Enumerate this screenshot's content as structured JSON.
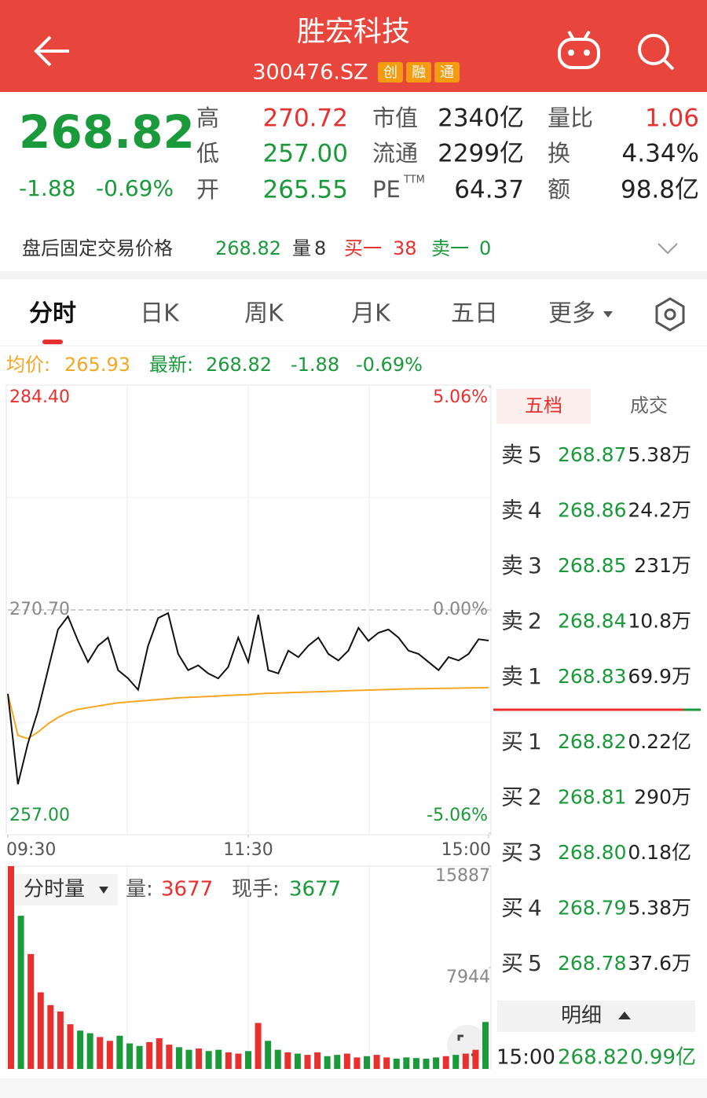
{
  "header": {
    "title": "胜宏科技",
    "code": "300476.SZ",
    "badges": [
      "创",
      "融",
      "通"
    ]
  },
  "quote": {
    "price": "268.82",
    "change": "-1.88",
    "change_pct": "-0.69%",
    "stats": [
      {
        "label": "高",
        "value": "270.72",
        "color": "#e8312f"
      },
      {
        "label": "低",
        "value": "257.00",
        "color": "#1a9a3a"
      },
      {
        "label": "开",
        "value": "265.55",
        "color": "#1a9a3a"
      },
      {
        "label": "市值",
        "value": "2340亿",
        "color": "#222222"
      },
      {
        "label": "流通",
        "value": "2299亿",
        "color": "#222222"
      },
      {
        "label": "PE",
        "label_sup": "TTM",
        "value": "64.37",
        "color": "#222222"
      },
      {
        "label": "量比",
        "value": "1.06",
        "color": "#e8312f"
      },
      {
        "label": "换",
        "value": "4.34%",
        "color": "#222222"
      },
      {
        "label": "额",
        "value": "98.8亿",
        "color": "#222222"
      }
    ]
  },
  "after_hours": {
    "label": "盘后固定交易价格",
    "price": "268.82",
    "volume_label": "量",
    "volume": "8",
    "buy1_label": "买一",
    "buy1": "38",
    "sell1_label": "卖一",
    "sell1": "0"
  },
  "tabs": [
    "分时",
    "日K",
    "周K",
    "月K",
    "五日",
    "更多"
  ],
  "summary": {
    "avg_label": "均价:",
    "avg": "265.93",
    "latest_label": "最新:",
    "latest": "268.82",
    "change": "-1.88",
    "change_pct": "-0.69%"
  },
  "chart_data": [
    {
      "type": "line",
      "x": [
        0,
        5,
        10,
        15,
        20,
        25,
        30,
        35,
        40,
        45,
        50,
        55,
        60,
        65,
        70,
        75,
        80,
        85,
        90,
        95,
        100,
        105,
        110,
        115,
        120,
        125,
        130,
        135,
        140,
        145,
        150,
        155,
        160,
        165,
        170,
        175,
        180,
        185,
        190,
        195,
        200,
        205,
        210,
        215,
        220,
        225,
        230,
        235,
        240
      ],
      "xlim": [
        0,
        240
      ],
      "xticks": [
        {
          "value": 0,
          "label": "09:30"
        },
        {
          "value": 120,
          "label": "11:30"
        },
        {
          "value": 240,
          "label": "15:00"
        }
      ],
      "ylim": [
        257.0,
        284.4
      ],
      "yticks": [
        {
          "value": 284.4,
          "label": "284.40"
        },
        {
          "value": 270.7,
          "label": "270.70"
        },
        {
          "value": 257.0,
          "label": "257.00"
        }
      ],
      "y2lim": [
        -5.06,
        5.06
      ],
      "y2ticks": [
        {
          "value": 5.06,
          "label": "5.06%"
        },
        {
          "value": 0,
          "label": "0.00%"
        },
        {
          "value": -5.06,
          "label": "-5.06%"
        }
      ],
      "series": [
        {
          "name": "最新:",
          "color": "#111111",
          "values": [
            265.55,
            260.0,
            262.5,
            264.5,
            267.0,
            269.5,
            270.3,
            268.8,
            267.5,
            268.5,
            269.0,
            267.0,
            266.5,
            265.8,
            268.5,
            270.2,
            270.5,
            268.0,
            267.0,
            267.3,
            266.8,
            266.5,
            267.2,
            269.0,
            267.5,
            270.4,
            267.0,
            266.8,
            268.2,
            267.8,
            268.5,
            269.0,
            268.0,
            267.6,
            268.2,
            269.6,
            268.8,
            269.3,
            269.5,
            269.0,
            268.2,
            268.0,
            267.5,
            267.0,
            267.8,
            267.6,
            268.0,
            268.9,
            268.82
          ]
        },
        {
          "name": "均价:",
          "color": "#f5a623",
          "values": [
            265.55,
            263.0,
            262.8,
            263.2,
            263.7,
            264.1,
            264.4,
            264.6,
            264.7,
            264.8,
            264.9,
            265.0,
            265.05,
            265.1,
            265.15,
            265.2,
            265.25,
            265.3,
            265.33,
            265.36,
            265.39,
            265.42,
            265.45,
            265.48,
            265.5,
            265.55,
            265.58,
            265.6,
            265.62,
            265.64,
            265.66,
            265.68,
            265.7,
            265.72,
            265.74,
            265.76,
            265.78,
            265.8,
            265.82,
            265.84,
            265.85,
            265.86,
            265.87,
            265.88,
            265.89,
            265.9,
            265.91,
            265.92,
            265.93
          ]
        }
      ]
    },
    {
      "type": "bar",
      "x": [
        0,
        5,
        10,
        15,
        20,
        25,
        30,
        35,
        40,
        45,
        50,
        55,
        60,
        65,
        70,
        75,
        80,
        85,
        90,
        95,
        100,
        105,
        110,
        115,
        120,
        125,
        130,
        135,
        140,
        145,
        150,
        155,
        160,
        165,
        170,
        175,
        180,
        185,
        190,
        195,
        200,
        205,
        210,
        215,
        220,
        225,
        230,
        235,
        240
      ],
      "xlim": [
        0,
        240
      ],
      "ylim": [
        0,
        15887
      ],
      "yticks": [
        7944,
        15887
      ],
      "up_color": "#e8312f",
      "down_color": "#1a9a3a",
      "values": [
        15887,
        12000,
        9000,
        6000,
        5000,
        4500,
        3500,
        3000,
        2800,
        2500,
        2200,
        2600,
        2000,
        1800,
        2100,
        2400,
        1900,
        1700,
        1500,
        1600,
        1400,
        1500,
        1300,
        1200,
        1400,
        3600,
        2200,
        1500,
        1300,
        1200,
        1100,
        1300,
        1000,
        1100,
        1200,
        900,
        1000,
        1100,
        900,
        800,
        900,
        850,
        800,
        900,
        1000,
        1100,
        1200,
        1500,
        3677
      ]
    }
  ],
  "volume_header": {
    "title": "分时量",
    "volume_label": "量:",
    "volume": "3677",
    "hand_label": "现手:",
    "hand": "3677"
  },
  "order_book": {
    "tabs": [
      "五档",
      "成交"
    ],
    "asks": [
      {
        "label": "卖5",
        "price": "268.87",
        "amount": "5.38万"
      },
      {
        "label": "卖4",
        "price": "268.86",
        "amount": "24.2万"
      },
      {
        "label": "卖3",
        "price": "268.85",
        "amount": "231万"
      },
      {
        "label": "卖2",
        "price": "268.84",
        "amount": "10.8万"
      },
      {
        "label": "卖1",
        "price": "268.83",
        "amount": "69.9万"
      }
    ],
    "bids": [
      {
        "label": "买1",
        "price": "268.82",
        "amount": "0.22亿"
      },
      {
        "label": "买2",
        "price": "268.81",
        "amount": "290万"
      },
      {
        "label": "买3",
        "price": "268.80",
        "amount": "0.18亿"
      },
      {
        "label": "买4",
        "price": "268.79",
        "amount": "5.38万"
      },
      {
        "label": "买5",
        "price": "268.78",
        "amount": "37.6万"
      }
    ],
    "detail_label": "明细",
    "last_trade": {
      "time": "15:00",
      "price": "268.82",
      "amount": "0.99亿"
    }
  }
}
